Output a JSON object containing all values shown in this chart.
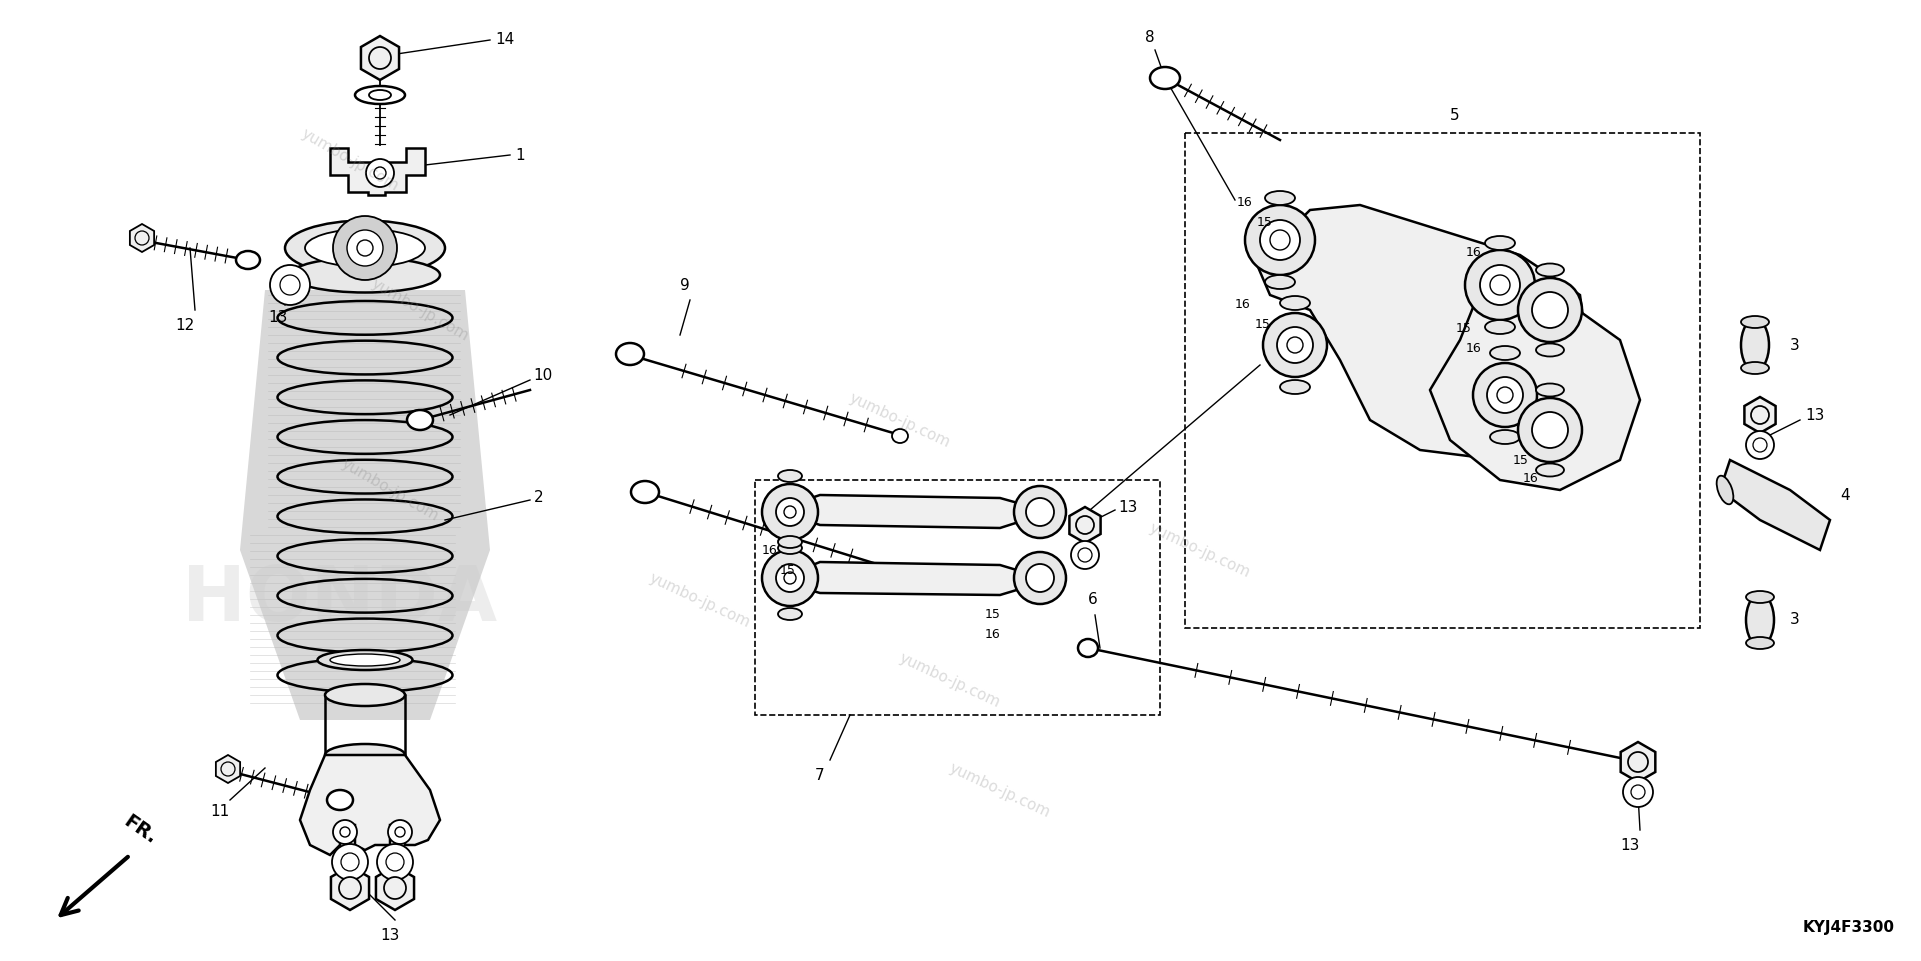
{
  "bg_color": "#ffffff",
  "fig_width": 19.21,
  "fig_height": 9.61,
  "dpi": 100,
  "part_number": "KYJ4F3300",
  "watermark": "yumbo-jp.com",
  "label_fontsize": 11,
  "small_fontsize": 9
}
